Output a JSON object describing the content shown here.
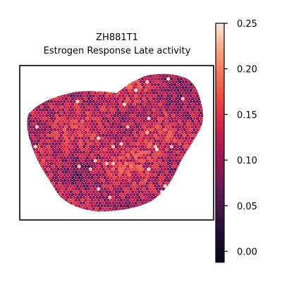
{
  "chart_data": {
    "type": "heatmap",
    "subtype": "spatial spot map (hexagonal spots)",
    "title_line1": "ZH881T1",
    "title_line2": "Estrogen Response Late activity",
    "colorbar": {
      "colormap": "rocket",
      "vmin": -0.012,
      "vmax": 0.25,
      "ticks": [
        0.25,
        0.2,
        0.15,
        0.1,
        0.05,
        0.0
      ],
      "tick_labels": [
        "0.25",
        "0.20",
        "0.15",
        "0.10",
        "0.05",
        "0.00"
      ]
    },
    "axes": {
      "xticks": [],
      "yticks": [],
      "frame": true
    },
    "value_distribution": {
      "typical_range": [
        0.07,
        0.17
      ],
      "mean": 0.12
    }
  }
}
